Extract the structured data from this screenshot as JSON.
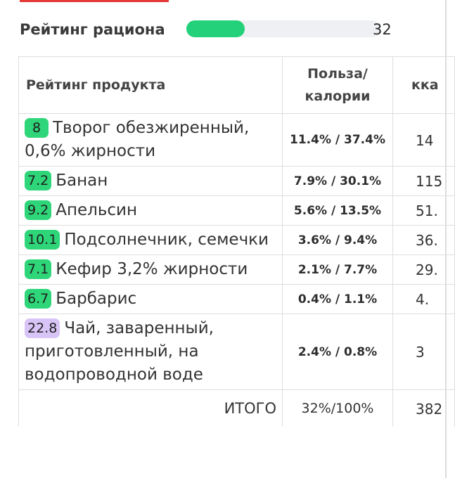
{
  "diet_rating": {
    "label": "Рейтинг рациона",
    "value": "32",
    "fill_fraction": 0.3
  },
  "table": {
    "headers": {
      "product": "Рейтинг продукта",
      "benefit_line1": "Польза/",
      "benefit_line2": "калории",
      "kcal": "кка"
    },
    "rows": [
      {
        "score": "8",
        "name": "Творог обезжиренный, 0,6% жирности",
        "benefit": "11.4% / 37.4%",
        "kcal": "14",
        "score_color": "green"
      },
      {
        "score": "7.2",
        "name": "Банан",
        "benefit": "7.9% / 30.1%",
        "kcal": "115",
        "score_color": "green"
      },
      {
        "score": "9.2",
        "name": "Апельсин",
        "benefit": "5.6% / 13.5%",
        "kcal": "51.",
        "score_color": "green"
      },
      {
        "score": "10.1",
        "name": "Подсолнечник, семечки",
        "benefit": "3.6% / 9.4%",
        "kcal": "36.",
        "score_color": "green"
      },
      {
        "score": "7.1",
        "name": "Кефир 3,2% жирности",
        "benefit": "2.1% / 7.7%",
        "kcal": "29.",
        "score_color": "green"
      },
      {
        "score": "6.7",
        "name": "Барбарис",
        "benefit": "0.4% / 1.1%",
        "kcal": "4.",
        "score_color": "green"
      },
      {
        "score": "22.8",
        "name": "Чай, заваренный, приготовленный, на водопроводной воде",
        "benefit": "2.4% / 0.8%",
        "kcal": "3",
        "score_color": "violet"
      }
    ],
    "total": {
      "label": "ИТОГО",
      "benefit": "32%/100%",
      "kcal": "382"
    }
  }
}
